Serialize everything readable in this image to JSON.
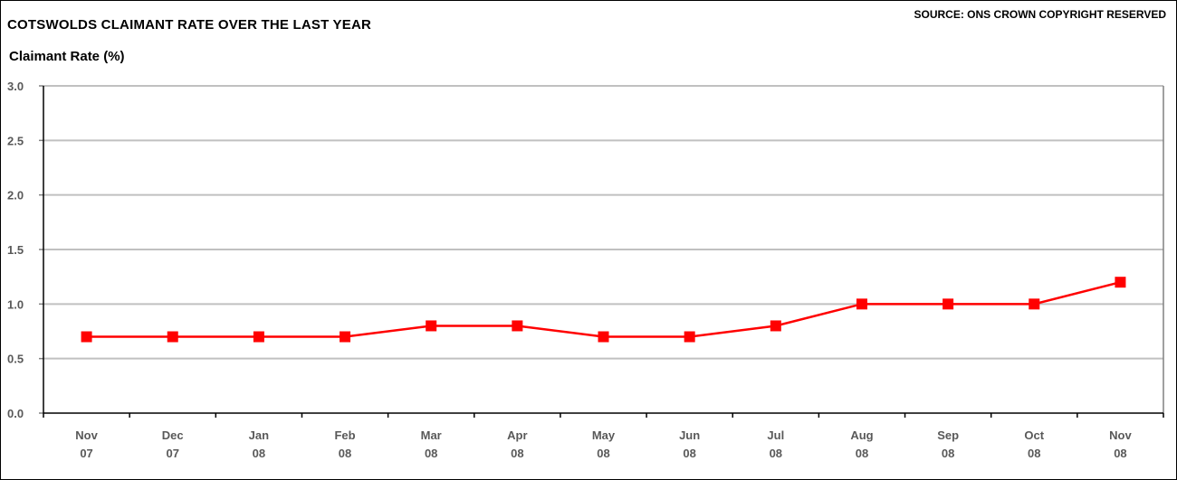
{
  "chart_data": {
    "type": "line",
    "title": "COTSWOLDS CLAIMANT RATE OVER THE LAST YEAR",
    "source": "SOURCE: ONS CROWN COPYRIGHT RESERVED",
    "ylabel": "Claimant Rate (%)",
    "xlabel": "",
    "ylim": [
      0,
      3.0
    ],
    "yticks": [
      "0.0",
      "0.5",
      "1.0",
      "1.5",
      "2.0",
      "2.5",
      "3.0"
    ],
    "categories": [
      [
        "Nov",
        "07"
      ],
      [
        "Dec",
        "07"
      ],
      [
        "Jan",
        "08"
      ],
      [
        "Feb",
        "08"
      ],
      [
        "Mar",
        "08"
      ],
      [
        "Apr",
        "08"
      ],
      [
        "May",
        "08"
      ],
      [
        "Jun",
        "08"
      ],
      [
        "Jul",
        "08"
      ],
      [
        "Aug",
        "08"
      ],
      [
        "Sep",
        "08"
      ],
      [
        "Oct",
        "08"
      ],
      [
        "Nov",
        "08"
      ]
    ],
    "series": [
      {
        "values": [
          0.7,
          0.7,
          0.7,
          0.7,
          0.8,
          0.8,
          0.7,
          0.7,
          0.8,
          1.0,
          1.0,
          1.0,
          1.2
        ]
      }
    ],
    "grid": true,
    "colors": {
      "series": "#ff0000",
      "grid": "#c0c0c0",
      "axis": "#808080",
      "tick_text": "#595959"
    }
  }
}
